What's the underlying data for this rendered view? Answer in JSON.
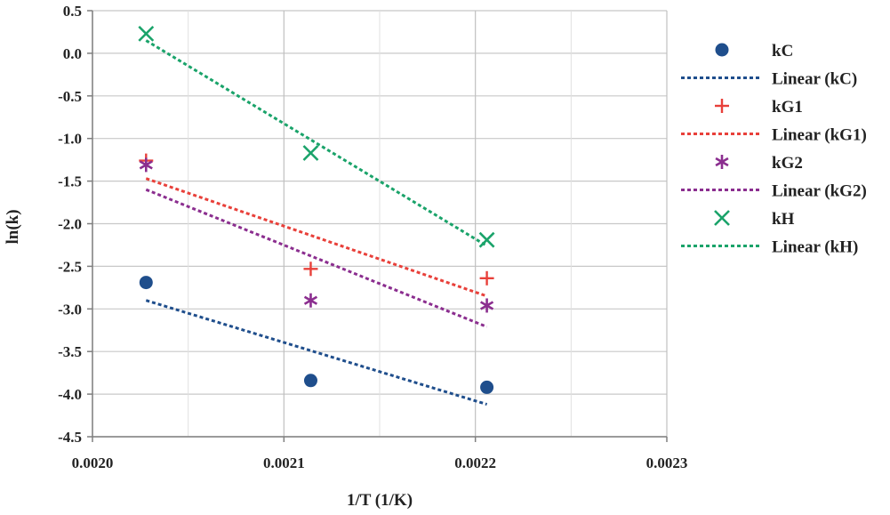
{
  "chart_data": {
    "type": "scatter",
    "title": "",
    "xlabel": "1/T (1/K)",
    "ylabel": "ln(k)",
    "xlim": [
      0.002,
      0.0023
    ],
    "ylim": [
      -4.5,
      0.5
    ],
    "x_ticks": [
      "0.0020",
      "0.0021",
      "0.0022",
      "0.0023"
    ],
    "y_ticks": [
      "0.5",
      "0.0",
      "-0.5",
      "-1.0",
      "-1.5",
      "-2.0",
      "-2.5",
      "-3.0",
      "-3.5",
      "-4.0",
      "-4.5"
    ],
    "grid": true,
    "legend_position": "right",
    "series": [
      {
        "name": "kC",
        "marker": "circle",
        "color": "#1F4E8C",
        "x": [
          0.002028,
          0.002114,
          0.002206
        ],
        "y": [
          -2.69,
          -3.84,
          -3.92
        ],
        "trendline_label": "Linear (kC)",
        "trendline": {
          "x": [
            0.002028,
            0.002206
          ],
          "y": [
            -2.9,
            -4.12
          ]
        }
      },
      {
        "name": "kG1",
        "marker": "plus",
        "color": "#E8403A",
        "x": [
          0.002028,
          0.002114,
          0.002206
        ],
        "y": [
          -1.26,
          -2.53,
          -2.64
        ],
        "trendline_label": "Linear (kG1)",
        "trendline": {
          "x": [
            0.002028,
            0.002206
          ],
          "y": [
            -1.47,
            -2.85
          ]
        }
      },
      {
        "name": "kG2",
        "marker": "asterisk",
        "color": "#8B2E8F",
        "x": [
          0.002028,
          0.002114,
          0.002206
        ],
        "y": [
          -1.31,
          -2.9,
          -2.96
        ],
        "trendline_label": "Linear (kG2)",
        "trendline": {
          "x": [
            0.002028,
            0.002206
          ],
          "y": [
            -1.6,
            -3.21
          ]
        }
      },
      {
        "name": "kH",
        "marker": "x",
        "color": "#1AA36A",
        "x": [
          0.002028,
          0.002114,
          0.002206
        ],
        "y": [
          0.23,
          -1.17,
          -2.19
        ],
        "trendline_label": "Linear (kH)",
        "trendline": {
          "x": [
            0.002028,
            0.002206
          ],
          "y": [
            0.15,
            -2.26
          ]
        }
      }
    ]
  }
}
